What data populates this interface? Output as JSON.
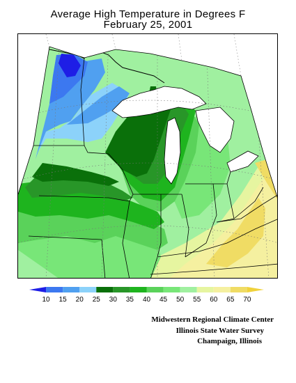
{
  "title": {
    "line1": "Average High Temperature in Degrees F",
    "line2": "February 25, 2001"
  },
  "legend": {
    "labels": [
      "10",
      "15",
      "20",
      "25",
      "30",
      "35",
      "40",
      "45",
      "50",
      "55",
      "60",
      "65",
      "70"
    ],
    "colors": [
      "#1e1ee6",
      "#3c78f0",
      "#50a0f0",
      "#8cd2fa",
      "#0a700a",
      "#289628",
      "#1eb41e",
      "#5ad25a",
      "#78e678",
      "#a0f0a0",
      "#e6f5a0",
      "#f5f0a0",
      "#f0dc64",
      "#f0d23c"
    ]
  },
  "credits": {
    "line1": "Midwestern Regional Climate Center",
    "line2": "Illinois State Water Survey",
    "line3": "Champaign, Illinois"
  }
}
